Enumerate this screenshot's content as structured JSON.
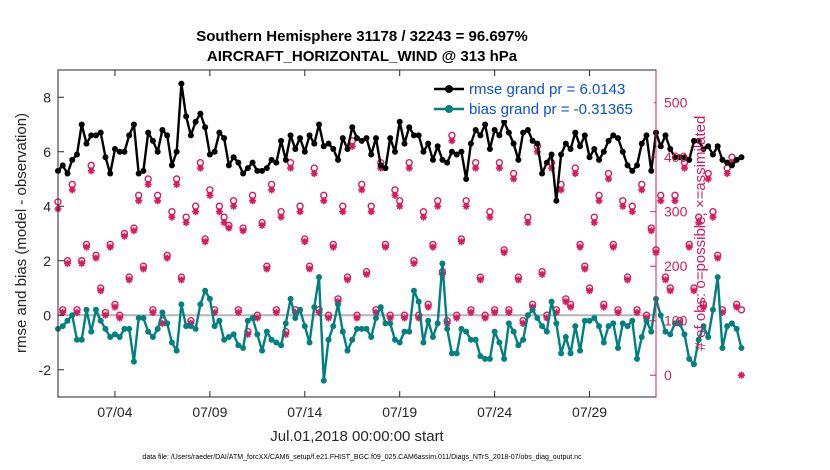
{
  "chart_data": {
    "type": "line",
    "title_lines": [
      "Southern Hemisphere 31178 / 32243 = 96.697%",
      "AIRCRAFT_HORIZONTAL_WIND @ 313 hPa"
    ],
    "xlabel": "Jul.01,2018 00:00:00 start",
    "ylabel": "rmse and bias (model - observation)",
    "ylabel_right": "# of obs: o=possible; ×=assimilated",
    "xlim": [
      1,
      32.5
    ],
    "ylim": [
      -3,
      9
    ],
    "ylim_right": [
      -40,
      560
    ],
    "x_ticks": [
      {
        "value": 4,
        "label": "07/04"
      },
      {
        "value": 9,
        "label": "07/09"
      },
      {
        "value": 14,
        "label": "07/14"
      },
      {
        "value": 19,
        "label": "07/19"
      },
      {
        "value": 24,
        "label": "07/24"
      },
      {
        "value": 29,
        "label": "07/29"
      }
    ],
    "y_ticks_left": [
      {
        "value": -2,
        "label": "-2"
      },
      {
        "value": 0,
        "label": "0"
      },
      {
        "value": 2,
        "label": "2"
      },
      {
        "value": 4,
        "label": "4"
      },
      {
        "value": 6,
        "label": "6"
      },
      {
        "value": 8,
        "label": "8"
      }
    ],
    "y_ticks_right": [
      {
        "value": 0,
        "label": "0"
      },
      {
        "value": 100,
        "label": "100"
      },
      {
        "value": 200,
        "label": "200"
      },
      {
        "value": 300,
        "label": "300"
      },
      {
        "value": 400,
        "label": "400"
      },
      {
        "value": 500,
        "label": "500"
      }
    ],
    "t_start": 1.0,
    "t_step": 0.25,
    "series": [
      {
        "name": "rmse grand pr = 6.0143",
        "color": "#000000",
        "axis": "left",
        "values": [
          5.3,
          5.5,
          5.2,
          5.7,
          5.9,
          7.0,
          6.3,
          6.6,
          6.6,
          6.7,
          5.8,
          5.2,
          6.1,
          6.0,
          6.0,
          6.6,
          7.0,
          5.2,
          5.3,
          6.7,
          6.4,
          6.0,
          6.8,
          6.6,
          5.5,
          6.0,
          8.5,
          7.3,
          6.6,
          7.1,
          7.4,
          6.9,
          5.9,
          6.0,
          6.7,
          6.5,
          5.5,
          5.8,
          5.6,
          5.2,
          5.4,
          5.6,
          5.3,
          5.3,
          5.4,
          5.7,
          5.6,
          6.4,
          5.7,
          6.6,
          6.1,
          6.5,
          6.0,
          6.6,
          6.3,
          7.0,
          6.2,
          6.3,
          6.1,
          5.7,
          6.5,
          6.1,
          6.9,
          6.5,
          6.4,
          6.5,
          5.9,
          6.5,
          5.5,
          5.4,
          6.5,
          6.0,
          7.1,
          6.3,
          6.9,
          6.6,
          6.6,
          6.0,
          6.3,
          5.7,
          6.2,
          5.7,
          5.6,
          6.0,
          5.9,
          6.0,
          5.0,
          6.3,
          6.8,
          6.6,
          7.0,
          6.1,
          6.8,
          6.6,
          7.1,
          6.7,
          6.3,
          5.7,
          6.7,
          6.8,
          6.4,
          6.3,
          5.2,
          5.6,
          5.9,
          4.2,
          5.9,
          6.3,
          6.1,
          6.7,
          6.2,
          6.6,
          5.8,
          6.1,
          5.7,
          6.0,
          6.4,
          6.6,
          6.5,
          6.0,
          5.5,
          5.3,
          5.5,
          6.3,
          6.6,
          5.3,
          6.7,
          6.2,
          6.6,
          6.1,
          5.8,
          5.8,
          5.8,
          5.7,
          6.4,
          6.4,
          6.1,
          6.2,
          5.9,
          6.2,
          5.7,
          5.6,
          5.5,
          5.7,
          5.8
        ]
      },
      {
        "name": "bias grand pr = -0.31365",
        "color": "#008080",
        "axis": "left",
        "values": [
          -0.5,
          -0.4,
          -0.2,
          0.0,
          -0.9,
          -0.9,
          0.2,
          -0.6,
          0.2,
          -0.2,
          -0.5,
          -0.8,
          -0.7,
          -0.8,
          -0.5,
          -0.5,
          -1.7,
          -0.1,
          -0.1,
          -0.6,
          -0.8,
          -0.5,
          0.1,
          -0.3,
          -1.0,
          -1.3,
          0.4,
          -0.4,
          -0.4,
          -0.5,
          0.4,
          0.9,
          0.6,
          -0.4,
          -0.2,
          -0.9,
          -0.8,
          -0.7,
          -1.1,
          -1.2,
          -0.2,
          -0.1,
          -0.7,
          -1.3,
          -0.6,
          -0.9,
          -1.0,
          -1.1,
          -0.3,
          0.6,
          -0.1,
          0.2,
          -0.4,
          -1.0,
          0.3,
          1.4,
          -2.4,
          -0.9,
          -0.4,
          0.4,
          -0.6,
          -1.3,
          -0.9,
          -0.5,
          -0.5,
          -0.5,
          -0.8,
          -0.1,
          0.3,
          -0.3,
          -0.3,
          -0.9,
          -1.0,
          -0.6,
          -0.6,
          0.9,
          0.5,
          -1.0,
          -0.2,
          -0.8,
          -0.3,
          1.9,
          -0.5,
          -1.4,
          -1.4,
          -0.5,
          -0.6,
          -0.9,
          -0.9,
          -1.5,
          -1.6,
          -1.6,
          -0.6,
          -1.0,
          -1.6,
          -0.3,
          -0.6,
          -1.1,
          -0.9,
          0.0,
          0.2,
          -0.1,
          -0.4,
          -0.6,
          0.5,
          -0.3,
          -1.4,
          -0.8,
          -1.4,
          -0.4,
          -1.3,
          -0.2,
          -0.2,
          -0.1,
          -0.4,
          -1.0,
          -0.4,
          -0.3,
          -1.2,
          -0.3,
          -0.4,
          -0.2,
          -1.6,
          -0.8,
          -0.2,
          -0.6,
          0.6,
          0.0,
          -0.6,
          -0.7,
          -0.3,
          -0.3,
          -0.7,
          -1.6,
          -1.8,
          -0.9,
          -0.4,
          -0.8,
          0.2,
          1.4,
          -1.2,
          -0.4,
          -0.3,
          -0.5,
          -1.2
        ]
      },
      {
        "name": "possible obs",
        "color": "#d81b60",
        "axis": "right",
        "marker": "circle",
        "values": [
          318,
          120,
          210,
          350,
          120,
          210,
          240,
          385,
          220,
          160,
          115,
          240,
          130,
          110,
          260,
          180,
          270,
          330,
          200,
          360,
          120,
          330,
          100,
          220,
          300,
          360,
          180,
          290,
          100,
          310,
          390,
          250,
          340,
          120,
          310,
          290,
          275,
          320,
          120,
          270,
          80,
          330,
          110,
          280,
          200,
          350,
          120,
          300,
          80,
          390,
          120,
          310,
          250,
          200,
          380,
          120,
          330,
          110,
          240,
          140,
          310,
          180,
          430,
          110,
          350,
          190,
          310,
          120,
          390,
          240,
          110,
          340,
          320,
          110,
          390,
          210,
          110,
          300,
          130,
          240,
          320,
          190,
          100,
          440,
          110,
          250,
          320,
          120,
          390,
          180,
          110,
          300,
          120,
          390,
          230,
          120,
          370,
          180,
          100,
          290,
          130,
          420,
          190,
          110,
          390,
          120,
          350,
          140,
          130,
          380,
          240,
          200,
          160,
          290,
          330,
          130,
          370,
          240,
          120,
          320,
          180,
          310,
          120,
          350,
          110,
          270,
          230,
          330,
          180,
          160,
          330,
          100,
          390,
          240,
          160,
          290,
          130,
          370,
          300,
          220,
          120,
          380,
          400,
          130,
          120
        ]
      },
      {
        "name": "assimilated obs",
        "color": "#d81b60",
        "axis": "right",
        "marker": "asterisk",
        "values": [
          305,
          115,
          205,
          340,
          115,
          205,
          235,
          375,
          215,
          155,
          110,
          235,
          125,
          105,
          255,
          175,
          265,
          320,
          195,
          350,
          115,
          320,
          95,
          215,
          290,
          350,
          175,
          280,
          95,
          300,
          380,
          245,
          330,
          115,
          300,
          280,
          270,
          310,
          115,
          265,
          75,
          320,
          105,
          275,
          195,
          340,
          115,
          290,
          75,
          380,
          115,
          300,
          245,
          195,
          370,
          115,
          320,
          105,
          235,
          135,
          300,
          175,
          420,
          105,
          340,
          185,
          300,
          115,
          380,
          235,
          105,
          330,
          310,
          105,
          380,
          205,
          105,
          290,
          125,
          235,
          310,
          185,
          95,
          430,
          105,
          245,
          310,
          115,
          380,
          175,
          105,
          290,
          115,
          380,
          225,
          115,
          360,
          175,
          95,
          280,
          125,
          410,
          185,
          105,
          380,
          115,
          340,
          135,
          125,
          370,
          235,
          195,
          155,
          280,
          320,
          125,
          360,
          235,
          115,
          310,
          175,
          300,
          115,
          340,
          105,
          265,
          225,
          320,
          175,
          155,
          320,
          95,
          380,
          235,
          155,
          280,
          125,
          360,
          290,
          215,
          115,
          370,
          390,
          125,
          0
        ]
      }
    ],
    "legend": [
      {
        "label": "rmse grand pr = 6.0143",
        "color": "#000000"
      },
      {
        "label": "bias grand pr = -0.31365",
        "color": "#008080"
      }
    ],
    "legend_placement": "top-right",
    "footer": "data file: /Users/raeder/DAI/ATM_forcXX/CAM6_setup/f.e21.FHIST_BGC.f09_025.CAM6assim.011/Diags_NTrS_2018-07/obs_diag_output.nc"
  }
}
